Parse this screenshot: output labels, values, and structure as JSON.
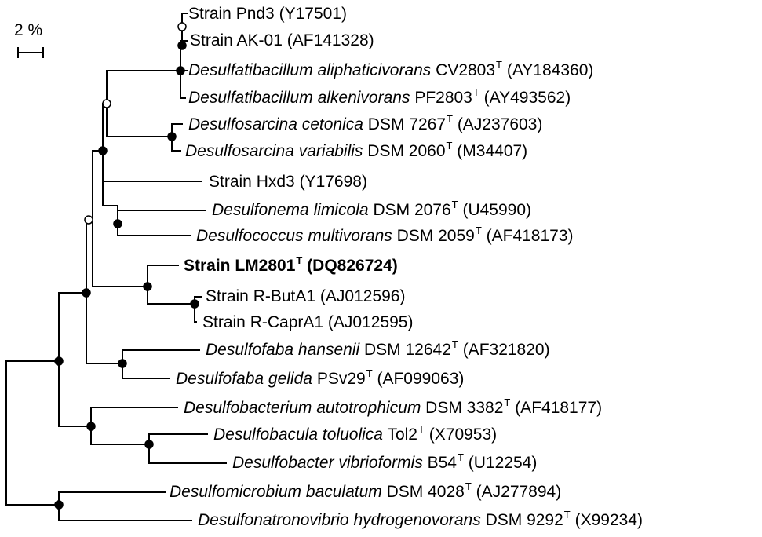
{
  "scale_bar": {
    "label": "2 %"
  },
  "legend": {
    "node_filled": "filled circle",
    "node_open": "open circle"
  },
  "colors": {
    "lines": "#000000",
    "text": "#000000",
    "background": "#ffffff"
  },
  "taxa": [
    {
      "id": "pnd3",
      "genus_species": "",
      "name": "Strain Pnd3",
      "strain": "",
      "type_strain": false,
      "accession": "(Y17501)",
      "bold": false
    },
    {
      "id": "ak01",
      "genus_species": "",
      "name": "Strain AK-01",
      "strain": "",
      "type_strain": false,
      "accession": "(AF141328)",
      "bold": false
    },
    {
      "id": "d_aliph",
      "genus_species": "Desulfatibacillum aliphaticivorans",
      "name": "",
      "strain": "CV2803",
      "type_strain": true,
      "accession": "(AY184360)",
      "bold": false
    },
    {
      "id": "d_alken",
      "genus_species": "Desulfatibacillum alkenivorans",
      "name": "",
      "strain": "PF2803",
      "type_strain": true,
      "accession": "(AY493562)",
      "bold": false
    },
    {
      "id": "d_ceton",
      "genus_species": "Desulfosarcina cetonica",
      "name": "",
      "strain": "DSM 7267",
      "type_strain": true,
      "accession": "(AJ237603)",
      "bold": false
    },
    {
      "id": "d_variab",
      "genus_species": "Desulfosarcina variabilis",
      "name": "",
      "strain": "DSM 2060",
      "type_strain": true,
      "accession": "(M34407)",
      "bold": false
    },
    {
      "id": "hxd3",
      "genus_species": "",
      "name": "Strain Hxd3",
      "strain": "",
      "type_strain": false,
      "accession": "(Y17698)",
      "bold": false
    },
    {
      "id": "d_limic",
      "genus_species": "Desulfonema limicola",
      "name": "",
      "strain": "DSM 2076",
      "type_strain": true,
      "accession": "(U45990)",
      "bold": false
    },
    {
      "id": "d_multiv",
      "genus_species": "Desulfococcus multivorans",
      "name": "",
      "strain": "DSM 2059",
      "type_strain": true,
      "accession": "(AF418173)",
      "bold": false
    },
    {
      "id": "lm2801",
      "genus_species": "",
      "name": "Strain LM2801",
      "strain": "",
      "type_strain": true,
      "accession": "(DQ826724)",
      "bold": true
    },
    {
      "id": "rbuta1",
      "genus_species": "",
      "name": "Strain R-ButA1",
      "strain": "",
      "type_strain": false,
      "accession": "(AJ012596)",
      "bold": false
    },
    {
      "id": "rcapra1",
      "genus_species": "",
      "name": "Strain R-CaprA1",
      "strain": "",
      "type_strain": false,
      "accession": "(AJ012595)",
      "bold": false
    },
    {
      "id": "d_hansen",
      "genus_species": "Desulfofaba hansenii",
      "name": "",
      "strain": "DSM 12642",
      "type_strain": true,
      "accession": "(AF321820)",
      "bold": false
    },
    {
      "id": "d_gelida",
      "genus_species": "Desulfofaba gelida",
      "name": "",
      "strain": "PSv29",
      "type_strain": true,
      "accession": "(AF099063)",
      "bold": false
    },
    {
      "id": "d_autotr",
      "genus_species": "Desulfobacterium autotrophicum",
      "name": "",
      "strain": "DSM 3382",
      "type_strain": true,
      "accession": "(AF418177)",
      "bold": false
    },
    {
      "id": "d_toluol",
      "genus_species": "Desulfobacula toluolica",
      "name": "",
      "strain": "Tol2",
      "type_strain": true,
      "accession": "(X70953)",
      "bold": false
    },
    {
      "id": "d_vibrio",
      "genus_species": "Desulfobacter vibrioformis",
      "name": "",
      "strain": "B54",
      "type_strain": true,
      "accession": "(U12254)",
      "bold": false
    },
    {
      "id": "d_bacul",
      "genus_species": "Desulfomicrobium baculatum",
      "name": "",
      "strain": "DSM 4028",
      "type_strain": true,
      "accession": "(AJ277894)",
      "bold": false
    },
    {
      "id": "d_hydrog",
      "genus_species": "Desulfonatronovibrio hydrogenovorans",
      "name": "",
      "strain": "DSM 9292",
      "type_strain": true,
      "accession": "(X99234)",
      "bold": false
    }
  ],
  "type_superscript": "T"
}
